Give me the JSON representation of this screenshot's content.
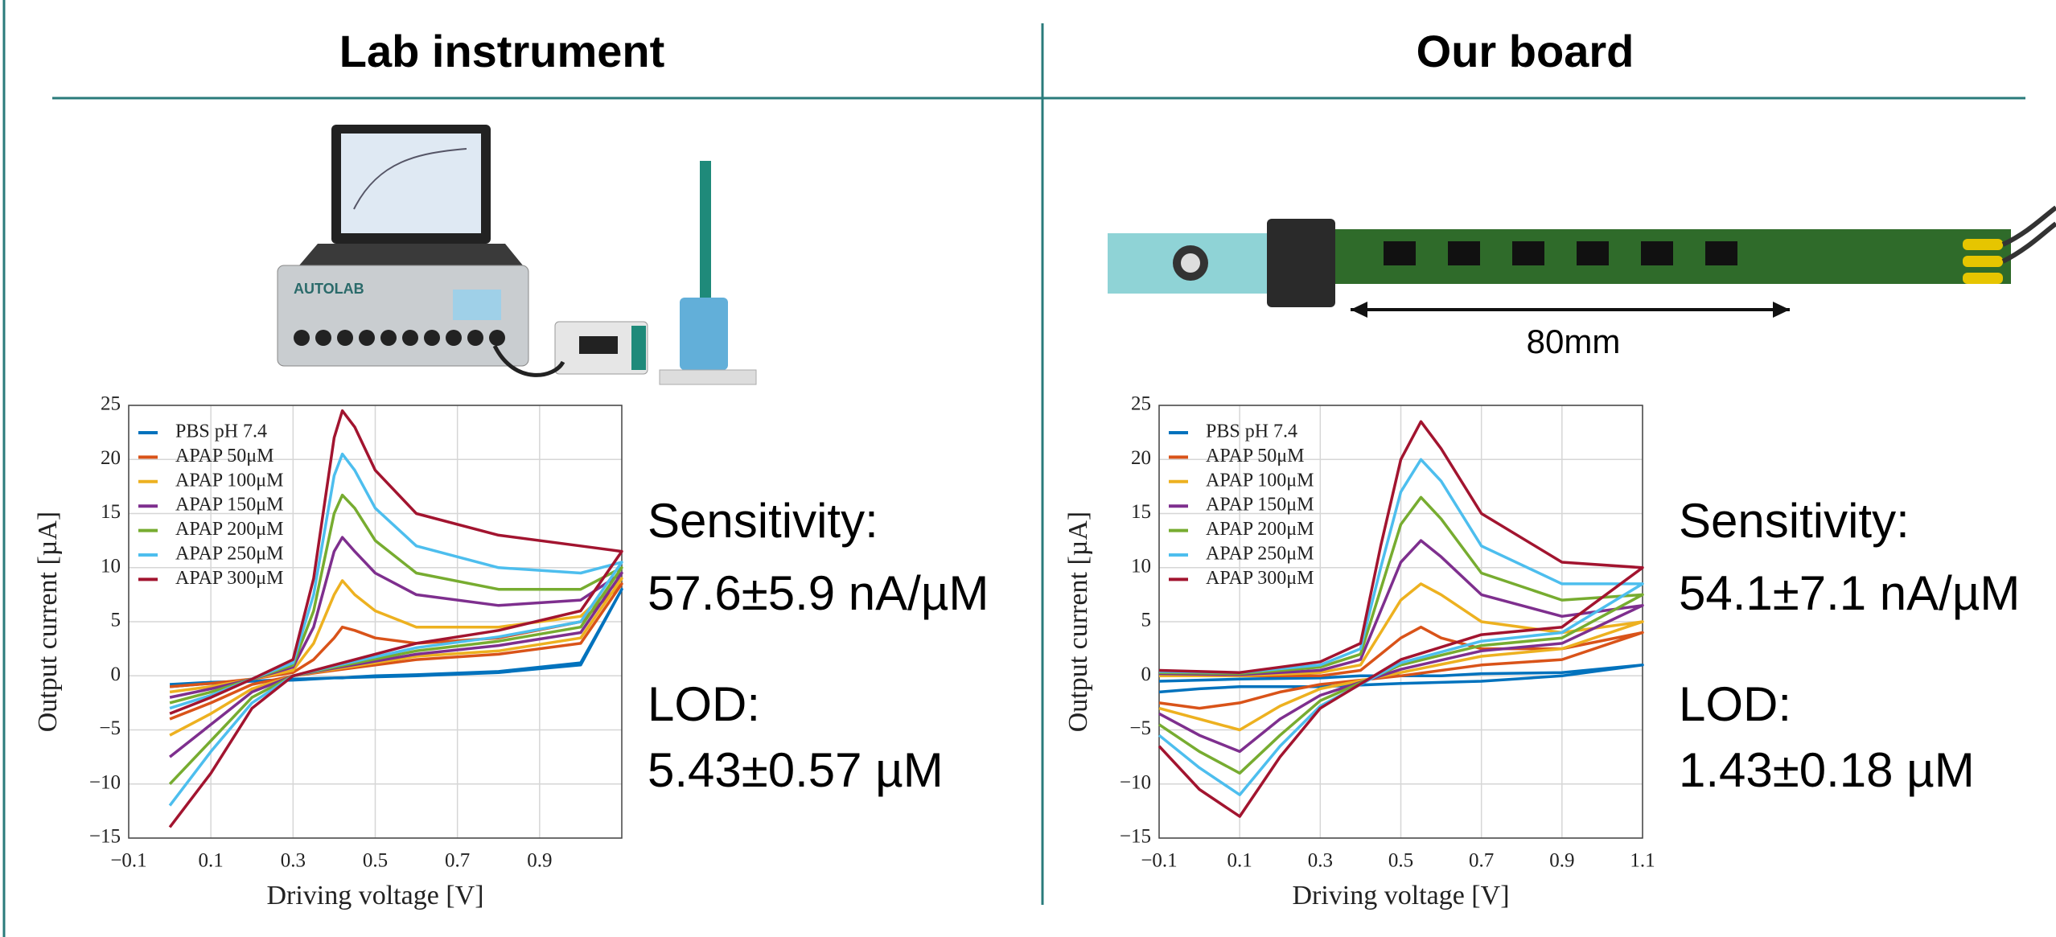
{
  "headings": [
    "Lab instrument",
    "Our board"
  ],
  "scale_label": "80mm",
  "metrics": [
    {
      "sensitivity_label": "Sensitivity:",
      "sensitivity": "57.6±5.9 nA/µM",
      "lod_label": "LOD:",
      "lod": "5.43±0.57 µM"
    },
    {
      "sensitivity_label": "Sensitivity:",
      "sensitivity": "54.1±7.1 nA/µM",
      "lod_label": "LOD:",
      "lod": "1.43±0.18 µM"
    }
  ],
  "chart_data": [
    {
      "type": "line",
      "x_label": "Driving voltage [V]",
      "y_label": "Output current [µA]",
      "xlim": [
        -0.1,
        1.1
      ],
      "ylim": [
        -15,
        25
      ],
      "grid": true,
      "legend": "top-left",
      "xticks": [
        {
          "value": -0.1,
          "label": "−0.1"
        },
        0.1,
        0.3,
        0.5,
        0.7,
        0.9
      ],
      "yticks": [
        {
          "value": -15,
          "label": "−15"
        },
        {
          "value": -10,
          "label": "−10"
        },
        {
          "value": -5,
          "label": "−5"
        },
        0,
        5,
        10,
        15,
        20,
        25
      ],
      "x": [
        0.0,
        0.1,
        0.2,
        0.3,
        0.35,
        0.4,
        0.42,
        0.45,
        0.5,
        0.6,
        0.8,
        1.0,
        1.1,
        1.0,
        0.8,
        0.6,
        0.4,
        0.3,
        0.2,
        0.1,
        0.0
      ],
      "series": [
        {
          "name": "PBS pH 7.4",
          "color": "#0072BD",
          "values": [
            -0.8,
            -0.6,
            -0.5,
            -0.4,
            -0.3,
            -0.2,
            -0.2,
            -0.1,
            0,
            0.1,
            0.4,
            1.2,
            8,
            1,
            0.3,
            0,
            -0.2,
            -0.3,
            -0.5,
            -0.7,
            -1
          ]
        },
        {
          "name": "APAP 50μM",
          "color": "#D95319",
          "values": [
            -1,
            -0.7,
            -0.3,
            0.3,
            1.5,
            3.5,
            4.5,
            4.2,
            3.5,
            3,
            3.5,
            5,
            8.5,
            3,
            2,
            1.5,
            0.5,
            0,
            -0.8,
            -2.5,
            -4
          ]
        },
        {
          "name": "APAP 100μM",
          "color": "#EDB120",
          "values": [
            -1.5,
            -1,
            -0.3,
            0.5,
            3,
            7.5,
            8.8,
            7.5,
            6,
            4.5,
            4.5,
            5.5,
            9,
            3.5,
            2.3,
            1.8,
            0.6,
            0,
            -1.2,
            -3.5,
            -5.5
          ]
        },
        {
          "name": "APAP 150μM",
          "color": "#7E2F8E",
          "values": [
            -2,
            -1.2,
            -0.3,
            0.8,
            4.5,
            11.5,
            12.8,
            11.5,
            9.5,
            7.5,
            6.5,
            7,
            9.5,
            4,
            2.8,
            2,
            0.7,
            0,
            -1.5,
            -4.5,
            -7.5
          ]
        },
        {
          "name": "APAP 200μM",
          "color": "#77AC30",
          "values": [
            -2.5,
            -1.5,
            -0.3,
            1,
            6,
            15,
            16.7,
            15.5,
            12.5,
            9.5,
            8,
            8,
            10,
            4.5,
            3.2,
            2.3,
            0.8,
            0,
            -2,
            -6,
            -10
          ]
        },
        {
          "name": "APAP 250μM",
          "color": "#4DBEEE",
          "values": [
            -3,
            -1.8,
            -0.3,
            1.2,
            7.5,
            18.5,
            20.5,
            19,
            15.5,
            12,
            10,
            9.5,
            10.5,
            5,
            3.6,
            2.6,
            0.9,
            0,
            -2.5,
            -7,
            -12
          ]
        },
        {
          "name": "APAP 300μM",
          "color": "#A2142F",
          "values": [
            -3.5,
            -2,
            -0.3,
            1.5,
            9,
            22,
            24.5,
            23,
            19,
            15,
            13,
            12,
            11.5,
            6,
            4.2,
            3,
            1,
            0,
            -3,
            -9,
            -14
          ]
        }
      ]
    },
    {
      "type": "line",
      "x_label": "Driving voltage [V]",
      "y_label": "Output current [µA]",
      "xlim": [
        -0.1,
        1.1
      ],
      "ylim": [
        -15,
        25
      ],
      "grid": true,
      "legend": "top-left",
      "xticks": [
        {
          "value": -0.1,
          "label": "−0.1"
        },
        0.1,
        0.3,
        0.5,
        0.7,
        0.9,
        1.1
      ],
      "yticks": [
        {
          "value": -15,
          "label": "−15"
        },
        {
          "value": -10,
          "label": "−10"
        },
        {
          "value": -5,
          "label": "−5"
        },
        0,
        5,
        10,
        15,
        20,
        25
      ],
      "x": [
        -0.1,
        0.1,
        0.3,
        0.4,
        0.45,
        0.5,
        0.55,
        0.6,
        0.7,
        0.9,
        1.1,
        0.9,
        0.7,
        0.5,
        0.3,
        0.2,
        0.1,
        0.0,
        -0.1
      ],
      "series": [
        {
          "name": "PBS pH 7.4",
          "color": "#0072BD",
          "values": [
            -0.5,
            -0.3,
            -0.2,
            0,
            0,
            0,
            0,
            0,
            0.2,
            0.3,
            1,
            0,
            -0.5,
            -0.7,
            -1,
            -1,
            -1,
            -1.2,
            -1.5
          ]
        },
        {
          "name": "APAP 50μM",
          "color": "#D95319",
          "values": [
            0,
            0,
            0,
            0.5,
            2,
            3.5,
            4.5,
            3.5,
            2.5,
            2.5,
            4,
            1.5,
            1,
            0,
            -0.8,
            -1.5,
            -2.5,
            -3,
            -2.5
          ]
        },
        {
          "name": "APAP 100μM",
          "color": "#EDB120",
          "values": [
            0,
            0,
            0.3,
            1,
            4,
            7,
            8.5,
            7.5,
            5,
            4,
            5,
            2.5,
            1.8,
            0.3,
            -1.2,
            -2.8,
            -5,
            -4,
            -3
          ]
        },
        {
          "name": "APAP 150μM",
          "color": "#7E2F8E",
          "values": [
            0.2,
            0.1,
            0.5,
            1.5,
            6,
            10.5,
            12.5,
            11,
            7.5,
            5.5,
            6.5,
            3,
            2.3,
            0.6,
            -1.8,
            -4,
            -7,
            -5.5,
            -3.5
          ]
        },
        {
          "name": "APAP 200μM",
          "color": "#77AC30",
          "values": [
            0.3,
            0.2,
            0.8,
            2,
            8,
            14,
            16.5,
            14.5,
            9.5,
            7,
            7.5,
            3.5,
            2.8,
            1,
            -2.3,
            -5.5,
            -9,
            -7,
            -4.5
          ]
        },
        {
          "name": "APAP 250μM",
          "color": "#4DBEEE",
          "values": [
            0.4,
            0.3,
            1,
            2.5,
            10,
            17,
            20,
            18,
            12,
            8.5,
            8.5,
            4,
            3.2,
            1.2,
            -2.8,
            -6.5,
            -11,
            -8.5,
            -5.5
          ]
        },
        {
          "name": "APAP 300μM",
          "color": "#A2142F",
          "values": [
            0.5,
            0.3,
            1.3,
            3,
            12,
            20,
            23.5,
            21,
            15,
            10.5,
            10,
            4.5,
            3.8,
            1.5,
            -3,
            -7.5,
            -13,
            -10.5,
            -6.5
          ]
        }
      ]
    }
  ]
}
